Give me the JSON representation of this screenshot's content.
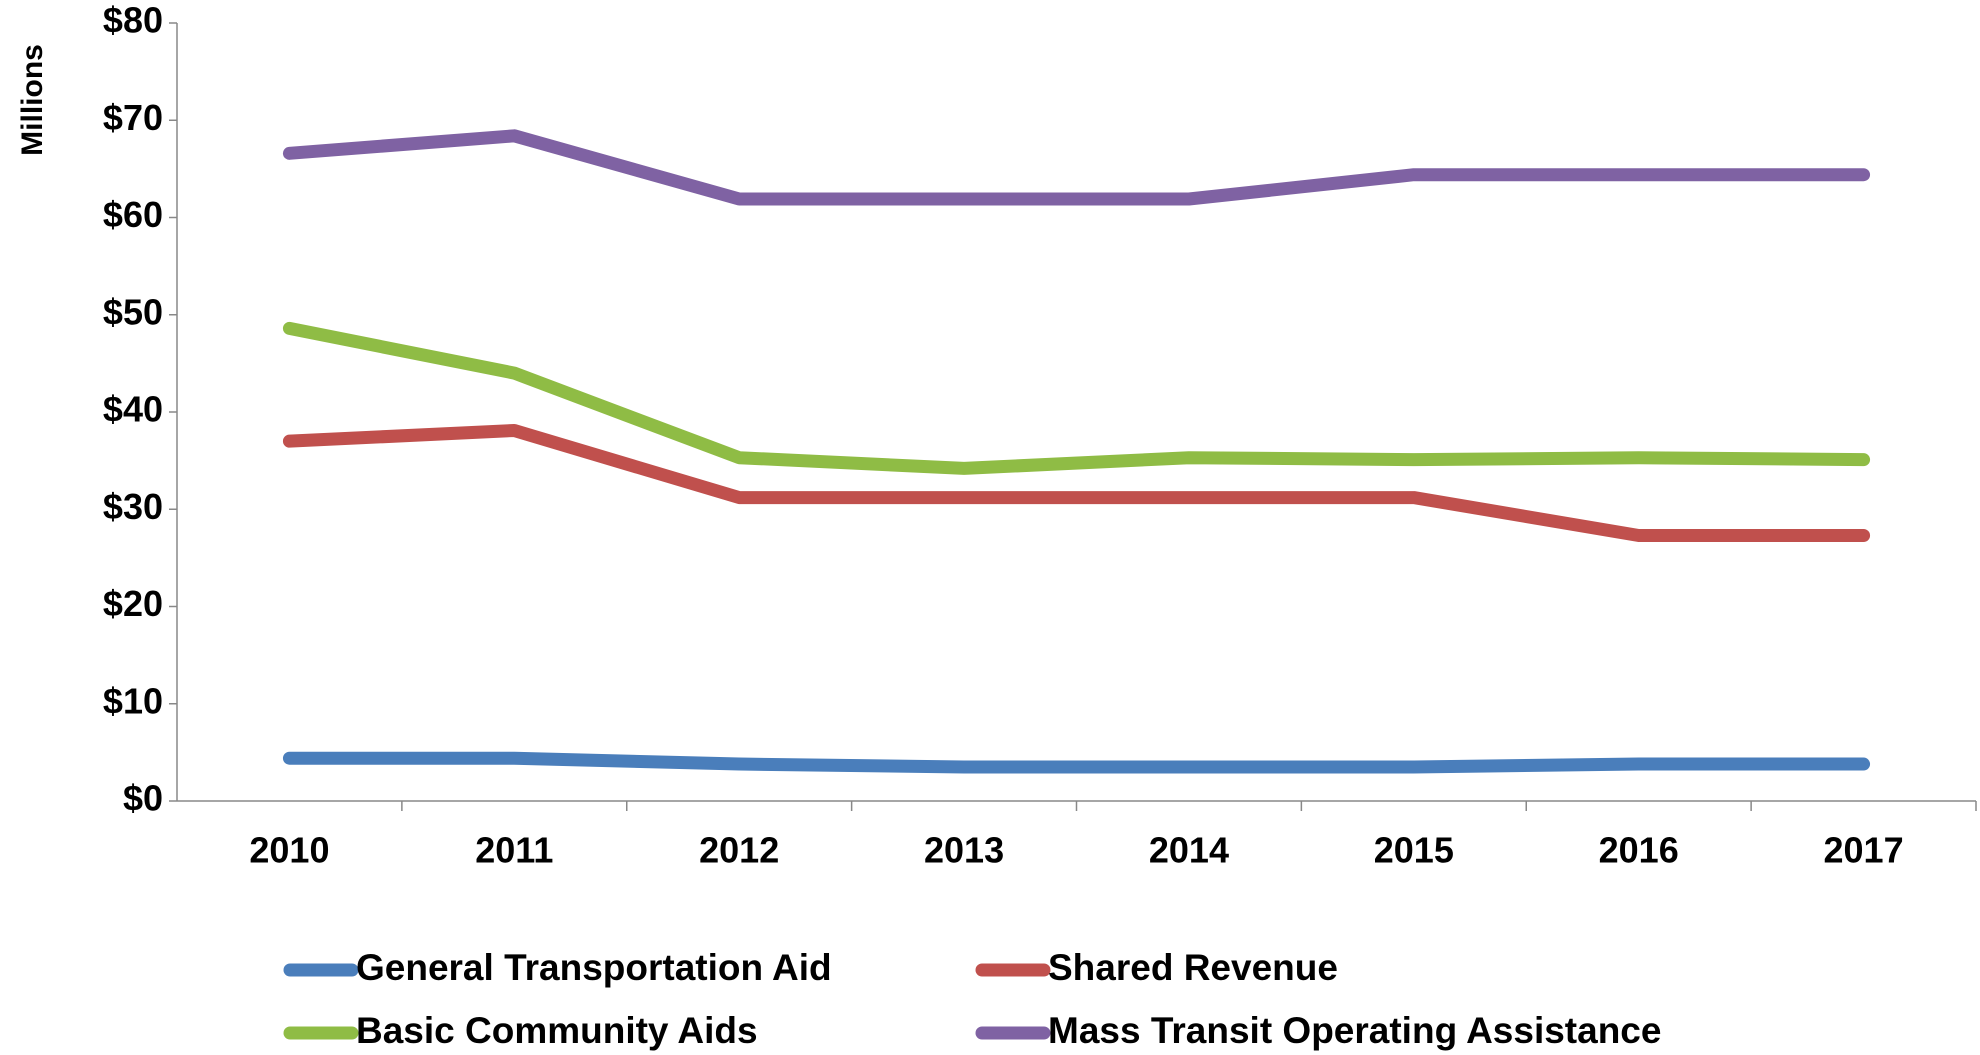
{
  "chart_data": {
    "type": "line",
    "y_label": "Millions",
    "categories": [
      "2010",
      "2011",
      "2012",
      "2013",
      "2014",
      "2015",
      "2016",
      "2017"
    ],
    "series": [
      {
        "name": "General Transportation Aid",
        "color": "#4a7ebb",
        "values": [
          4.4,
          4.4,
          3.8,
          3.5,
          3.5,
          3.5,
          3.8,
          3.8
        ]
      },
      {
        "name": "Shared Revenue",
        "color": "#c0504d",
        "values": [
          37.0,
          38.1,
          31.2,
          31.2,
          31.2,
          31.2,
          27.3,
          27.3
        ]
      },
      {
        "name": "Basic Community Aids",
        "color": "#8fbc45",
        "values": [
          48.6,
          44.0,
          35.3,
          34.2,
          35.3,
          35.1,
          35.3,
          35.1
        ]
      },
      {
        "name": "Mass Transit Operating Assistance",
        "color": "#7f62a3",
        "values": [
          66.6,
          68.4,
          61.9,
          61.9,
          61.9,
          64.4,
          64.4,
          64.4
        ]
      }
    ],
    "ylim": [
      0,
      80
    ],
    "yticks": [
      {
        "value": 0,
        "label": "$0"
      },
      {
        "value": 10,
        "label": "$10"
      },
      {
        "value": 20,
        "label": "$20"
      },
      {
        "value": 30,
        "label": "$30"
      },
      {
        "value": 40,
        "label": "$40"
      },
      {
        "value": 50,
        "label": "$50"
      },
      {
        "value": 60,
        "label": "$60"
      },
      {
        "value": 70,
        "label": "$70"
      },
      {
        "value": 80,
        "label": "$80"
      }
    ],
    "grid": false,
    "legend": "bottom"
  }
}
